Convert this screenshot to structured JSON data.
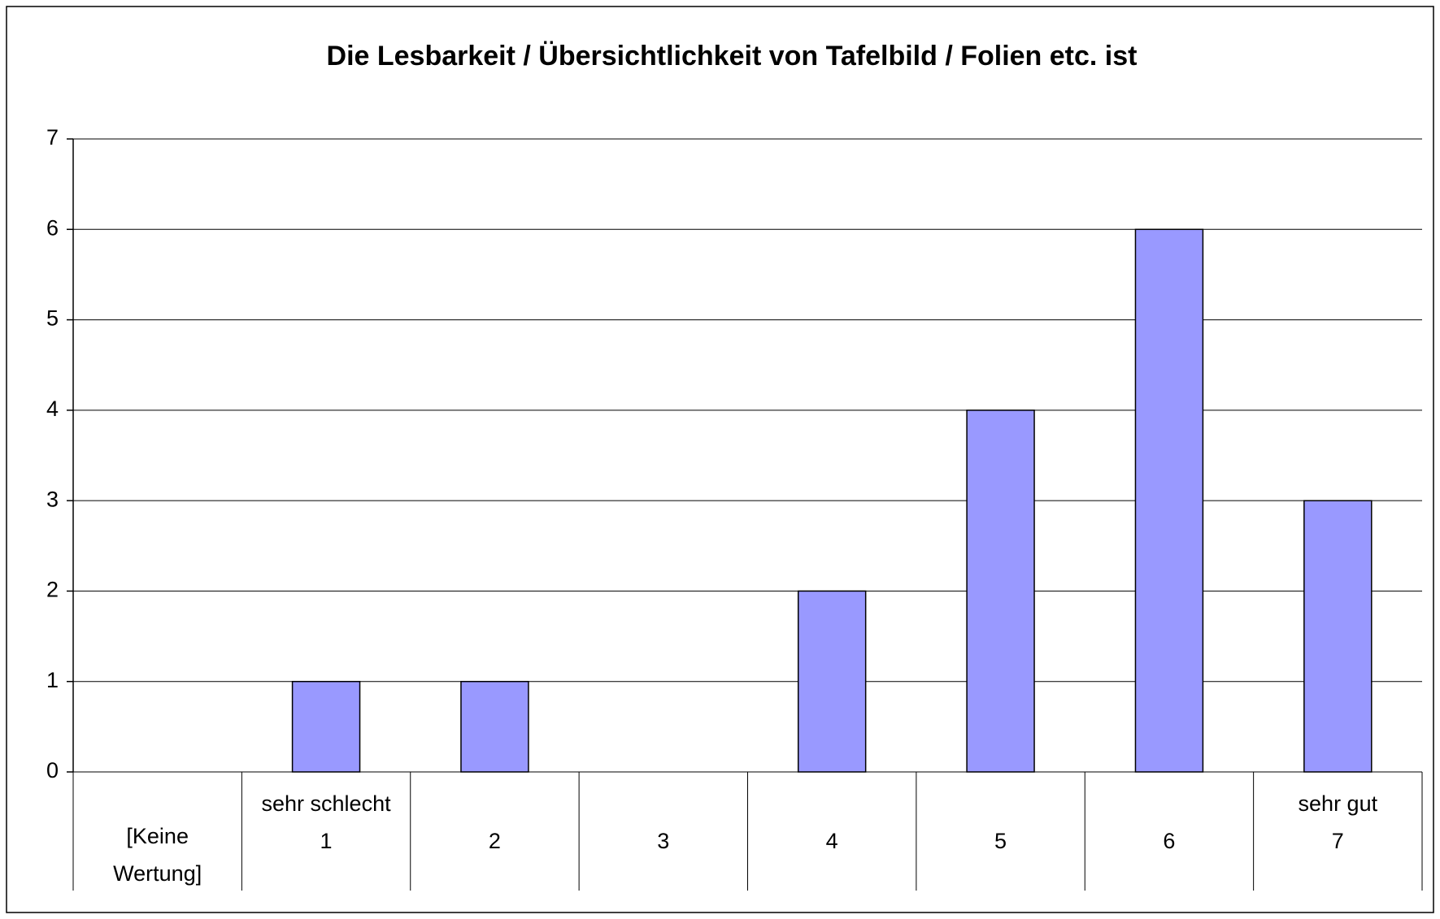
{
  "chart_data": {
    "type": "bar",
    "title": "Die Lesbarkeit / Übersichtlichkeit von Tafelbild / Folien etc. ist",
    "categories": [
      [
        "[Keine",
        "Wertung]"
      ],
      [
        "sehr schlecht",
        "1"
      ],
      [
        "2"
      ],
      [
        "3"
      ],
      [
        "4"
      ],
      [
        "5"
      ],
      [
        "6"
      ],
      [
        "sehr gut",
        "7"
      ]
    ],
    "values": [
      0,
      1,
      1,
      0,
      2,
      4,
      6,
      3
    ],
    "color": "#9999ff",
    "ylim": [
      0,
      7
    ],
    "yticks": [
      0,
      1,
      2,
      3,
      4,
      5,
      6,
      7
    ],
    "grid": true
  }
}
